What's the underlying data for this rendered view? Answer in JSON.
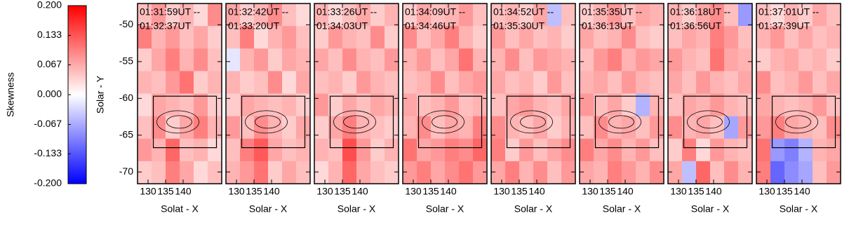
{
  "chart_data": {
    "type": "heatmap",
    "colorbar_label": "Skewness",
    "ylabel": "Solar - Y",
    "colormap": [
      "#0000ff",
      "#ffffff",
      "#ff0000"
    ],
    "clim": [
      -0.2,
      0.2
    ],
    "cticks": [
      {
        "value": 0.2,
        "label": "0.200"
      },
      0.133,
      0.067,
      {
        "value": 0,
        "label": "0.000"
      },
      -0.067,
      -0.133,
      {
        "value": -0.2,
        "label": "-0.200"
      }
    ],
    "xlim": [
      127,
      151
    ],
    "xticks": [
      130,
      135,
      140
    ],
    "ylim": [
      -71.6,
      -47.1
    ],
    "yticks": [
      -50,
      -55,
      -60,
      -65,
      -70
    ],
    "box": {
      "x": [
        131.5,
        149.5
      ],
      "y": [
        -59.7,
        -66.7
      ]
    },
    "panels": [
      {
        "time": [
          "01:31:59UT --",
          "01:32:37UT"
        ],
        "xlabel": "Solat - X",
        "values": [
          [
            0.05,
            0.08,
            0.04,
            0.06,
            0.03,
            0.09
          ],
          [
            0.1,
            0.06,
            0.08,
            0.05,
            0.07,
            0.04
          ],
          [
            0.04,
            0.07,
            0.1,
            0.06,
            0.09,
            0.05
          ],
          [
            0.06,
            0.05,
            0.08,
            0.11,
            0.04,
            0.06
          ],
          [
            0.03,
            0.07,
            0.06,
            0.05,
            0.08,
            0.04
          ],
          [
            0.05,
            0.09,
            0.04,
            0.07,
            0.1,
            0.06
          ],
          [
            0.08,
            0.06,
            0.12,
            0.05,
            0.06,
            0.03
          ],
          [
            0.04,
            0.05,
            0.1,
            0.07,
            0.03,
            0.05
          ]
        ]
      },
      {
        "time": [
          "01:32:42UT --",
          "01:33:20UT"
        ],
        "xlabel": "Solar - X",
        "values": [
          [
            0.07,
            0.04,
            0.06,
            0.09,
            0.05,
            0.03
          ],
          [
            0.05,
            0.1,
            0.03,
            0.06,
            0.08,
            0.05
          ],
          [
            -0.02,
            0.06,
            0.08,
            0.04,
            0.07,
            0.06
          ],
          [
            0.06,
            0.04,
            0.05,
            0.09,
            0.03,
            0.07
          ],
          [
            0.04,
            0.07,
            0.06,
            0.05,
            0.06,
            0.04
          ],
          [
            0.08,
            0.05,
            0.09,
            0.06,
            0.04,
            0.07
          ],
          [
            0.05,
            0.1,
            0.13,
            0.07,
            0.05,
            0.06
          ],
          [
            0.06,
            0.08,
            0.11,
            0.04,
            0.07,
            0.05
          ]
        ]
      },
      {
        "time": [
          "01:33:26UT --",
          "01:34:03UT"
        ],
        "xlabel": "Solar - X",
        "values": [
          [
            0.06,
            0.03,
            0.05,
            0.07,
            0.04,
            0.06
          ],
          [
            0.04,
            0.08,
            0.06,
            0.05,
            0.09,
            0.04
          ],
          [
            0.07,
            0.05,
            0.09,
            0.06,
            0.05,
            0.08
          ],
          [
            0.05,
            0.06,
            0.04,
            0.08,
            0.06,
            0.05
          ],
          [
            0.08,
            0.04,
            0.07,
            0.05,
            0.07,
            0.06
          ],
          [
            0.04,
            0.07,
            0.1,
            0.06,
            0.05,
            0.04
          ],
          [
            0.06,
            0.05,
            0.14,
            0.08,
            0.04,
            0.06
          ],
          [
            0.03,
            0.06,
            0.12,
            0.07,
            0.05,
            0.04
          ]
        ]
      },
      {
        "time": [
          "01:34:09UT --",
          "01:34:46UT"
        ],
        "xlabel": "Solar - X",
        "values": [
          [
            0.04,
            0.07,
            0.05,
            0.06,
            0.08,
            0.05
          ],
          [
            0.09,
            0.05,
            0.07,
            0.1,
            0.06,
            0.04
          ],
          [
            0.06,
            0.08,
            0.05,
            0.07,
            0.11,
            0.06
          ],
          [
            0.05,
            0.06,
            0.09,
            0.05,
            0.07,
            0.08
          ],
          [
            0.07,
            0.05,
            0.06,
            0.08,
            0.05,
            0.06
          ],
          [
            0.06,
            0.09,
            0.05,
            0.07,
            0.06,
            0.1
          ],
          [
            0.11,
            0.07,
            0.08,
            0.1,
            0.09,
            0.12
          ],
          [
            0.08,
            0.1,
            0.07,
            0.09,
            0.11,
            0.08
          ]
        ]
      },
      {
        "time": [
          "01:34:52UT --",
          "01:35:30UT"
        ],
        "xlabel": "Solar - X",
        "values": [
          [
            0.05,
            0.06,
            0.04,
            0.07,
            -0.05,
            0.05
          ],
          [
            0.08,
            0.05,
            0.07,
            0.05,
            0.06,
            0.04
          ],
          [
            0.06,
            0.09,
            0.05,
            0.08,
            0.07,
            0.06
          ],
          [
            0.07,
            0.05,
            0.06,
            0.04,
            0.08,
            0.05
          ],
          [
            0.05,
            0.07,
            0.08,
            0.06,
            0.05,
            0.07
          ],
          [
            0.09,
            0.06,
            0.05,
            0.07,
            0.04,
            0.06
          ],
          [
            0.1,
            0.04,
            0.08,
            0.05,
            0.07,
            0.09
          ],
          [
            0.07,
            0.1,
            0.06,
            0.09,
            0.05,
            0.08
          ]
        ]
      },
      {
        "time": [
          "01:35:35UT --",
          "01:36:13UT"
        ],
        "xlabel": "Solar - X",
        "values": [
          [
            0.04,
            0.06,
            0.08,
            0.05,
            0.07,
            0.06
          ],
          [
            0.07,
            0.05,
            0.06,
            0.09,
            0.05,
            0.04
          ],
          [
            0.05,
            0.08,
            0.1,
            0.06,
            0.08,
            0.07
          ],
          [
            0.06,
            0.07,
            0.05,
            0.08,
            0.06,
            0.05
          ],
          [
            0.08,
            0.05,
            0.07,
            0.04,
            -0.06,
            0.06
          ],
          [
            0.05,
            0.09,
            0.06,
            0.07,
            0.05,
            0.08
          ],
          [
            0.1,
            0.07,
            0.09,
            0.06,
            0.08,
            0.05
          ],
          [
            0.07,
            0.06,
            0.1,
            0.08,
            0.06,
            0.09
          ]
        ]
      },
      {
        "time": [
          "01:36:18UT --",
          "01:36:56UT"
        ],
        "xlabel": "Solar - X",
        "values": [
          [
            0.06,
            0.04,
            0.07,
            0.09,
            0.05,
            -0.08
          ],
          [
            0.05,
            0.07,
            0.06,
            0.1,
            0.08,
            0.05
          ],
          [
            0.08,
            0.06,
            0.05,
            0.11,
            0.07,
            0.06
          ],
          [
            0.07,
            0.05,
            0.08,
            0.06,
            0.05,
            0.07
          ],
          [
            0.05,
            0.07,
            0.06,
            0.08,
            0.06,
            0.05
          ],
          [
            0.09,
            0.06,
            0.07,
            0.05,
            -0.07,
            0.08
          ],
          [
            0.04,
            0.1,
            0.03,
            0.08,
            0.06,
            0.05
          ],
          [
            0.07,
            -0.05,
            0.12,
            0.05,
            0.09,
            0.06
          ]
        ]
      },
      {
        "time": [
          "01:37:01UT --",
          "01:37:39UT"
        ],
        "xlabel": "Solar - X",
        "values": [
          [
            0.05,
            0.03,
            0.06,
            0.04,
            0.07,
            0.05
          ],
          [
            0.06,
            0.08,
            0.05,
            0.07,
            0.05,
            0.06
          ],
          [
            0.04,
            0.06,
            0.07,
            0.05,
            0.06,
            0.04
          ],
          [
            0.09,
            0.05,
            0.06,
            0.08,
            0.05,
            0.07
          ],
          [
            0.07,
            0.06,
            0.05,
            0.06,
            0.08,
            0.05
          ],
          [
            0.08,
            0.1,
            0.07,
            0.06,
            0.05,
            0.09
          ],
          [
            0.11,
            -0.08,
            -0.1,
            -0.06,
            0.06,
            0.07
          ],
          [
            0.1,
            -0.12,
            -0.09,
            -0.07,
            0.05,
            0.08
          ]
        ]
      }
    ]
  }
}
